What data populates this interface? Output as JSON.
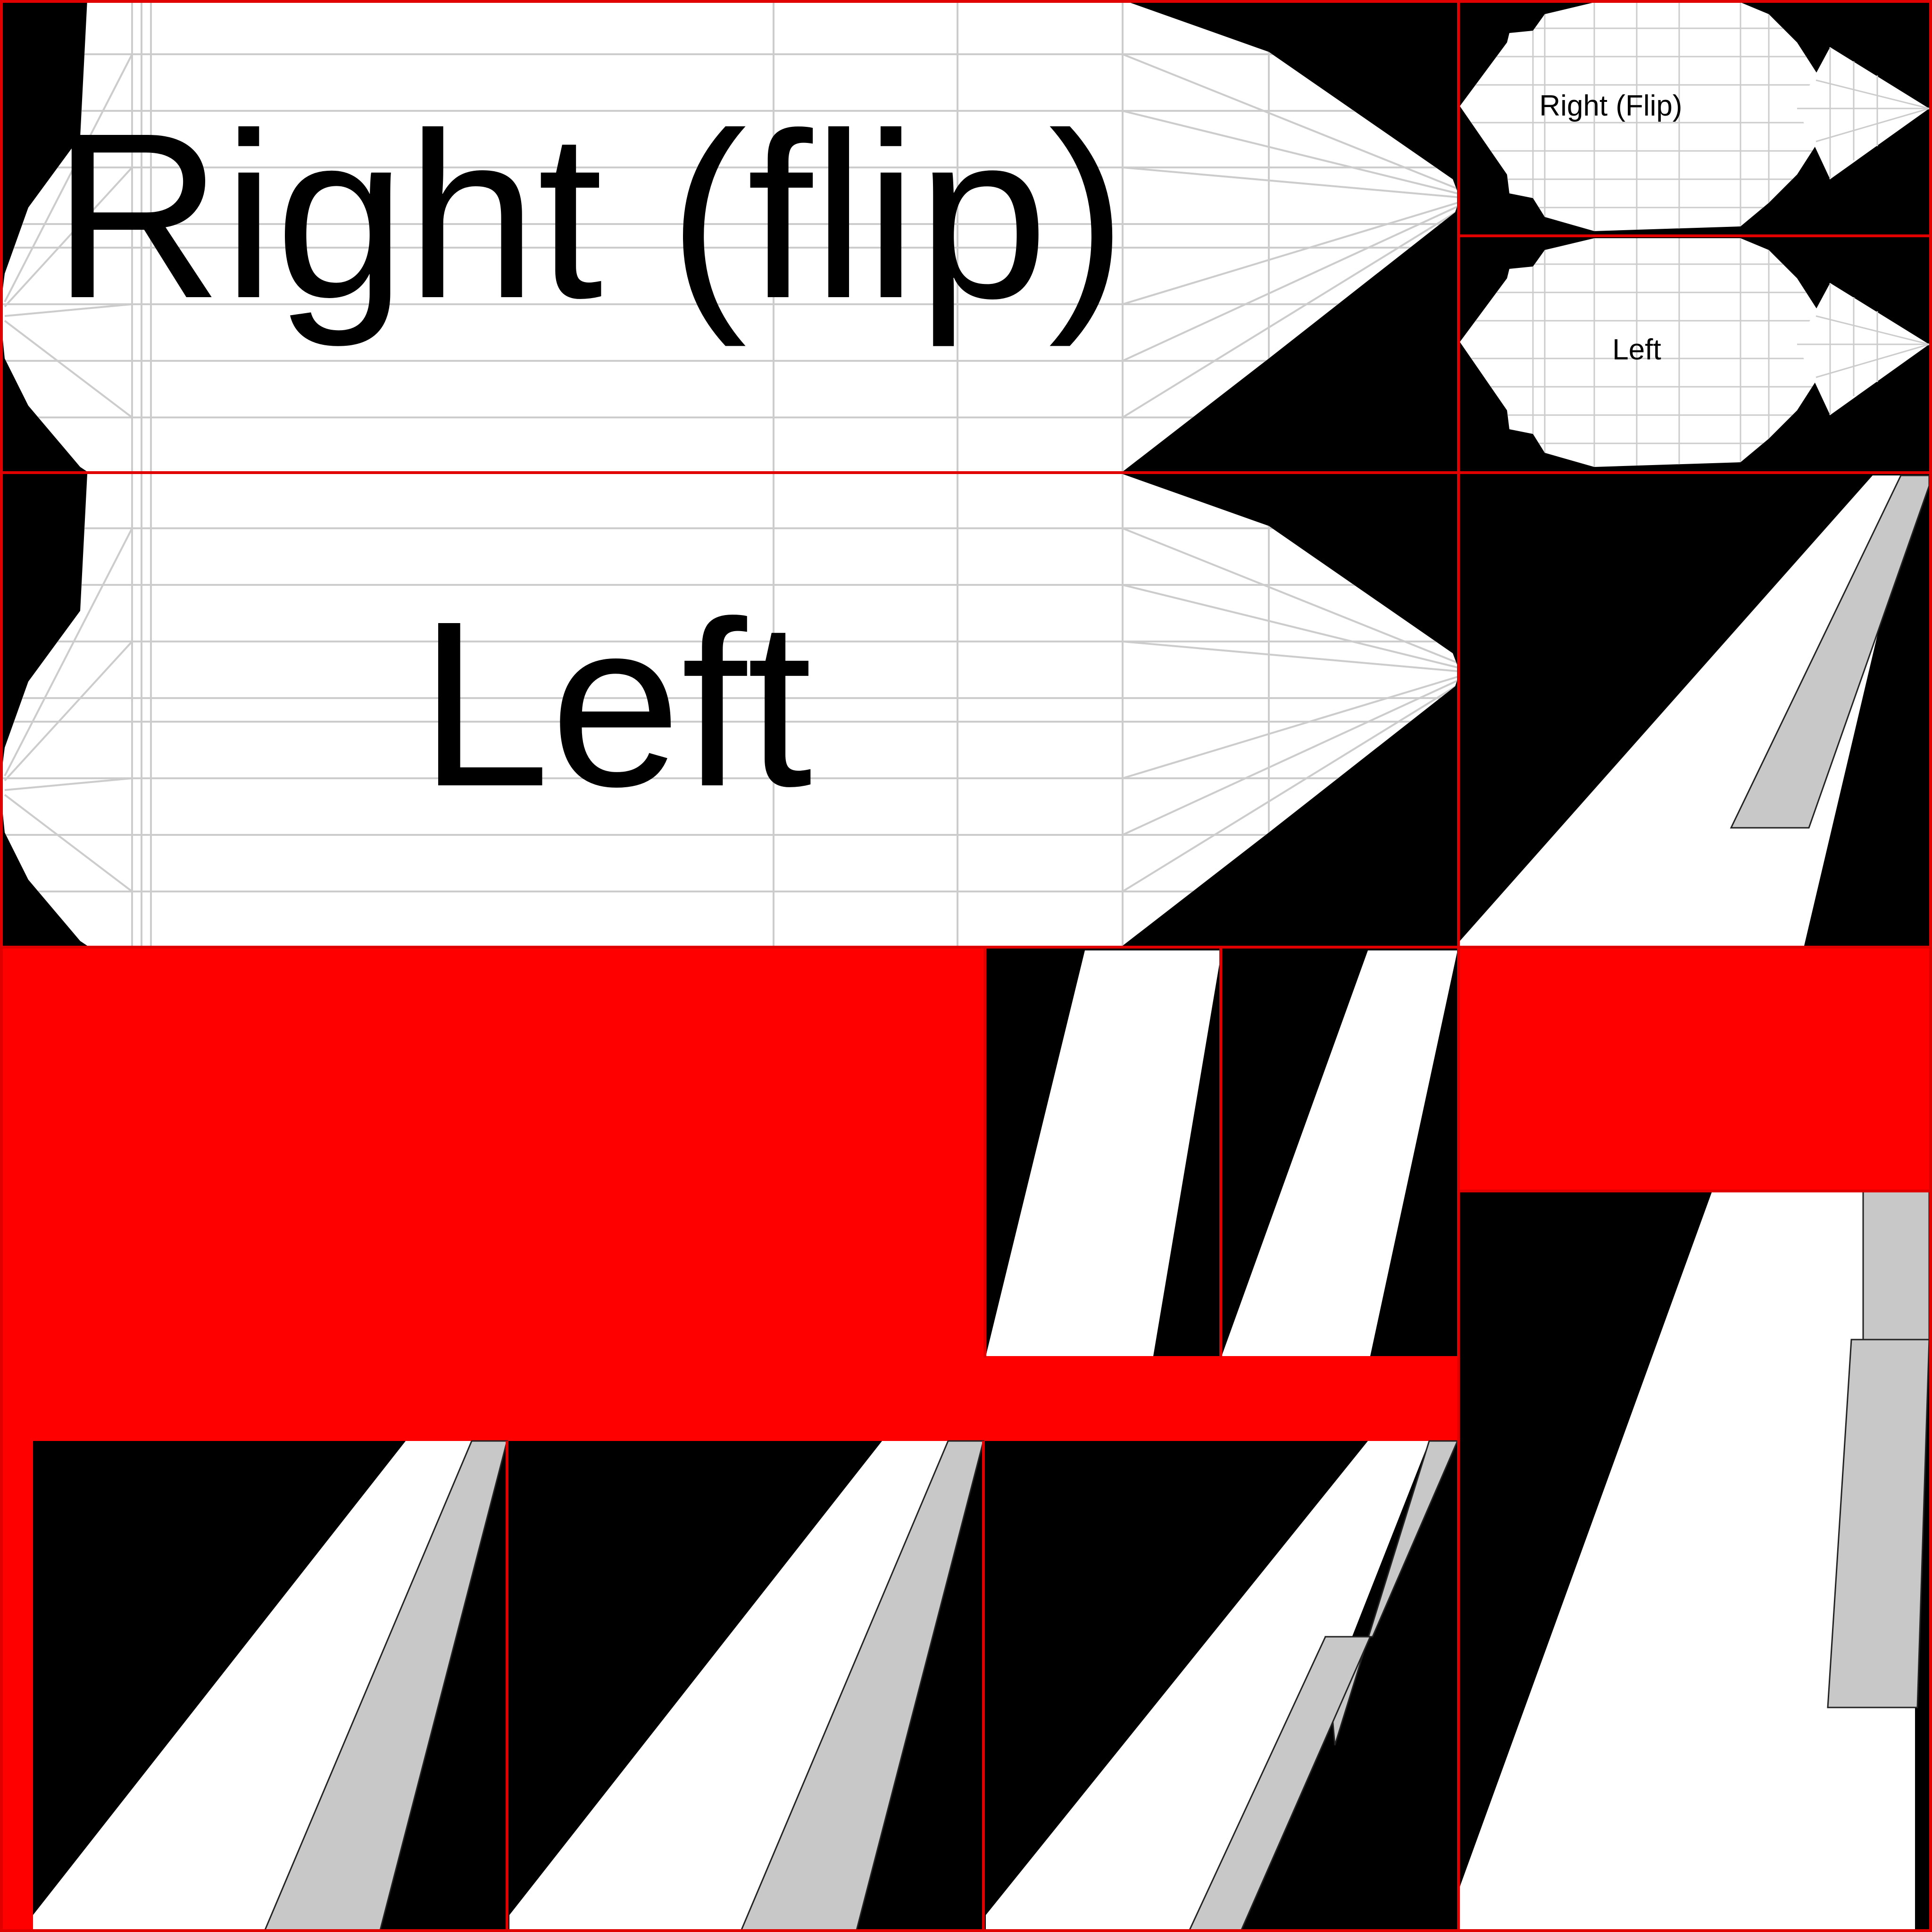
{
  "labels": {
    "large_right": "Right (flip)",
    "large_left": "Left",
    "small_right": "Right (Flip)",
    "small_left": "Left"
  },
  "colors": {
    "background": "#000000",
    "fill_red": "#ff0000",
    "divider_red": "#e00000",
    "shape_white": "#ffffff",
    "shape_grey": "#c8c8c8",
    "mesh_line": "#cccccc",
    "text": "#000000"
  }
}
